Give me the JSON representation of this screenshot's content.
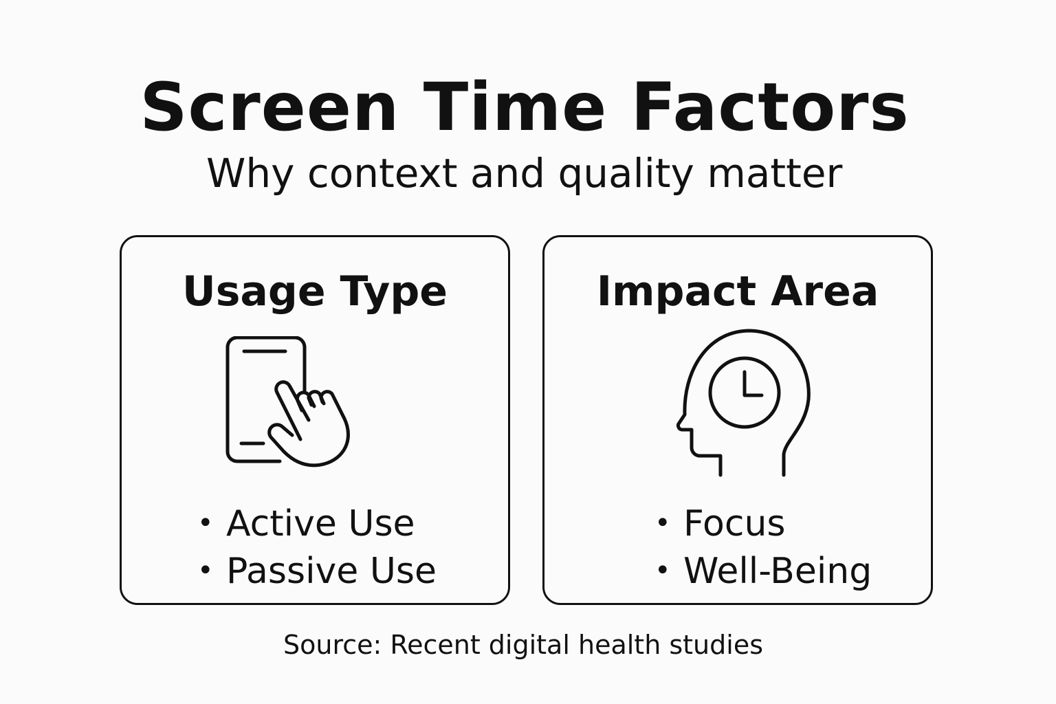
{
  "title": "Screen Time Factors",
  "subtitle": "Why context and quality matter",
  "cards": [
    {
      "heading": "Usage Type",
      "icon": "phone-tap-icon",
      "items": [
        "Active Use",
        "Passive Use"
      ]
    },
    {
      "heading": "Impact Area",
      "icon": "head-clock-icon",
      "items": [
        "Focus",
        "Well-Being"
      ]
    }
  ],
  "source": "Source: Recent digital health studies"
}
